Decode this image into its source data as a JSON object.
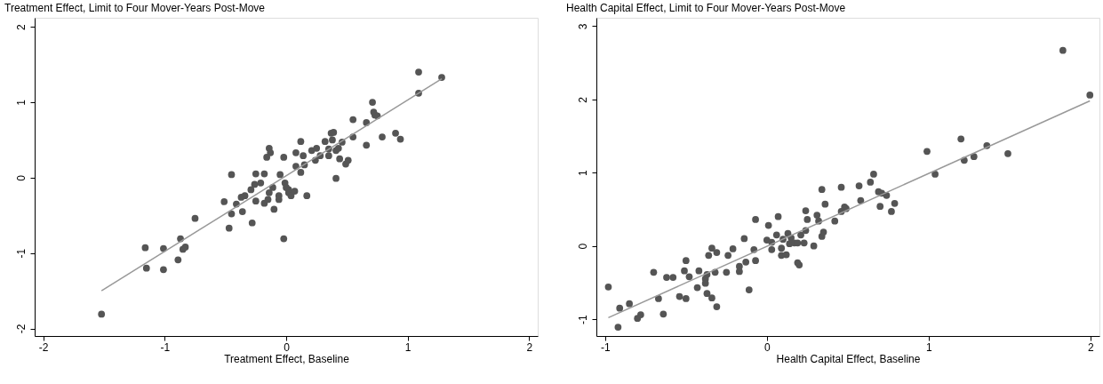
{
  "chart_data": [
    {
      "type": "scatter",
      "title": "Treatment Effect, Limit to Four Mover-Years Post-Move",
      "xlabel": "Treatment Effect, Baseline",
      "xlim": [
        -2.07,
        2.07
      ],
      "ylim": [
        -2.1,
        2.12
      ],
      "xticks": [
        -2,
        -1,
        0,
        1,
        2
      ],
      "yticks": [
        -2,
        -1,
        0,
        1,
        2
      ],
      "grid": false,
      "series": [
        {
          "type": "scatter",
          "marker": "circle",
          "color": "#555555",
          "x": [
            -1.52,
            -1.16,
            -1.15,
            -1.01,
            -1.01,
            -0.87,
            -0.89,
            -0.85,
            -0.83,
            -0.75,
            -0.51,
            -0.45,
            -0.47,
            -0.45,
            -0.41,
            -0.36,
            -0.37,
            -0.34,
            -0.28,
            -0.29,
            -0.25,
            -0.25,
            -0.26,
            -0.21,
            -0.18,
            -0.18,
            -0.16,
            -0.14,
            -0.13,
            -0.14,
            -0.15,
            -0.11,
            -0.1,
            -0.06,
            -0.06,
            -0.05,
            -0.02,
            -0.02,
            -0.01,
            0.02,
            0.0,
            0.02,
            0.04,
            0.07,
            0.17,
            0.08,
            0.08,
            0.12,
            0.12,
            0.14,
            0.15,
            0.21,
            0.24,
            0.25,
            0.28,
            0.32,
            0.35,
            0.35,
            0.37,
            0.39,
            0.38,
            0.41,
            0.43,
            0.41,
            0.44,
            0.46,
            0.49,
            0.51,
            0.55,
            0.55,
            0.66,
            0.66,
            0.71,
            0.72,
            0.73,
            0.75,
            0.79,
            0.9,
            0.94,
            1.09,
            1.09,
            1.28
          ],
          "values": [
            -1.81,
            -0.93,
            -1.2,
            -0.94,
            -1.22,
            -0.81,
            -1.09,
            -0.95,
            -0.92,
            -0.54,
            -0.32,
            0.04,
            -0.67,
            -0.48,
            -0.35,
            -0.45,
            -0.26,
            -0.24,
            -0.6,
            -0.16,
            0.05,
            -0.31,
            -0.09,
            -0.07,
            0.05,
            -0.34,
            0.27,
            0.39,
            0.33,
            -0.2,
            -0.29,
            -0.13,
            -0.42,
            -0.24,
            -0.29,
            0.04,
            -0.81,
            0.27,
            -0.07,
            -0.16,
            -0.13,
            -0.2,
            -0.24,
            -0.18,
            -0.24,
            0.15,
            0.33,
            0.48,
            0.07,
            0.29,
            0.17,
            0.36,
            0.23,
            0.39,
            0.29,
            0.48,
            0.29,
            0.38,
            0.59,
            0.6,
            0.5,
            0.36,
            0.39,
            -0.01,
            0.25,
            0.47,
            0.18,
            0.23,
            0.54,
            0.77,
            0.43,
            0.73,
            1.0,
            0.87,
            0.83,
            0.82,
            0.54,
            0.59,
            0.51,
            1.4,
            1.12,
            1.33
          ]
        },
        {
          "type": "line",
          "marker": "none",
          "color": "#999999",
          "x": [
            -1.52,
            1.28
          ],
          "values": [
            -1.5,
            1.31
          ]
        }
      ]
    },
    {
      "type": "scatter",
      "title": "Health Capital Effect, Limit to Four Mover-Years Post-Move",
      "xlabel": "Health Capital Effect, Baseline",
      "xlim": [
        -1.054,
        2.056
      ],
      "ylim": [
        -1.23,
        3.115
      ],
      "xticks": [
        -1,
        0,
        1,
        2
      ],
      "yticks": [
        -1,
        0,
        1,
        2,
        3
      ],
      "grid": false,
      "series": [
        {
          "type": "scatter",
          "marker": "circle",
          "color": "#555555",
          "x": [
            -0.98,
            -0.91,
            -0.92,
            -0.85,
            -0.8,
            -0.78,
            -0.7,
            -0.67,
            -0.64,
            -0.62,
            -0.58,
            -0.54,
            -0.51,
            -0.5,
            -0.5,
            -0.48,
            -0.43,
            -0.42,
            -0.38,
            -0.38,
            -0.37,
            -0.37,
            -0.36,
            -0.34,
            -0.34,
            -0.32,
            -0.31,
            -0.31,
            -0.25,
            -0.24,
            -0.21,
            -0.17,
            -0.17,
            -0.14,
            -0.13,
            -0.11,
            -0.08,
            -0.07,
            -0.07,
            0.0,
            0.01,
            0.03,
            0.03,
            0.07,
            0.06,
            0.09,
            0.09,
            0.1,
            0.12,
            0.13,
            0.14,
            0.15,
            0.17,
            0.19,
            0.19,
            0.2,
            0.21,
            0.23,
            0.24,
            0.24,
            0.25,
            0.29,
            0.31,
            0.34,
            0.34,
            0.35,
            0.36,
            0.32,
            0.42,
            0.46,
            0.46,
            0.48,
            0.49,
            0.57,
            0.58,
            0.64,
            0.66,
            0.69,
            0.7,
            0.71,
            0.74,
            0.77,
            0.79,
            0.99,
            1.04,
            1.2,
            1.22,
            1.28,
            1.36,
            1.49,
            1.83,
            1.997
          ],
          "values": [
            -0.56,
            -0.85,
            -1.11,
            -0.79,
            -0.99,
            -0.94,
            -0.36,
            -0.72,
            -0.93,
            -0.43,
            -0.43,
            -0.69,
            -0.34,
            -0.72,
            -0.2,
            -0.42,
            -0.57,
            -0.34,
            -0.45,
            -0.51,
            -0.65,
            -0.39,
            -0.13,
            -0.71,
            -0.03,
            -0.36,
            -0.09,
            -0.83,
            -0.36,
            -0.13,
            -0.04,
            -0.28,
            -0.35,
            0.1,
            -0.22,
            -0.6,
            -0.05,
            -0.2,
            0.36,
            0.08,
            0.28,
            0.05,
            -0.05,
            0.4,
            0.15,
            -0.03,
            -0.13,
            0.09,
            -0.12,
            0.17,
            0.03,
            0.11,
            0.04,
            0.04,
            -0.23,
            -0.26,
            0.15,
            0.04,
            0.48,
            0.21,
            0.36,
            0.0,
            0.42,
            0.77,
            0.13,
            0.19,
            0.57,
            0.34,
            0.34,
            0.8,
            0.47,
            0.53,
            0.51,
            0.82,
            0.62,
            0.87,
            0.98,
            0.74,
            0.54,
            0.72,
            0.69,
            0.47,
            0.58,
            1.29,
            0.98,
            1.46,
            1.17,
            1.22,
            1.37,
            1.26,
            2.67,
            2.06
          ]
        },
        {
          "type": "line",
          "marker": "none",
          "color": "#999999",
          "x": [
            -0.98,
            1.997
          ],
          "values": [
            -0.98,
            1.98
          ]
        }
      ]
    }
  ]
}
